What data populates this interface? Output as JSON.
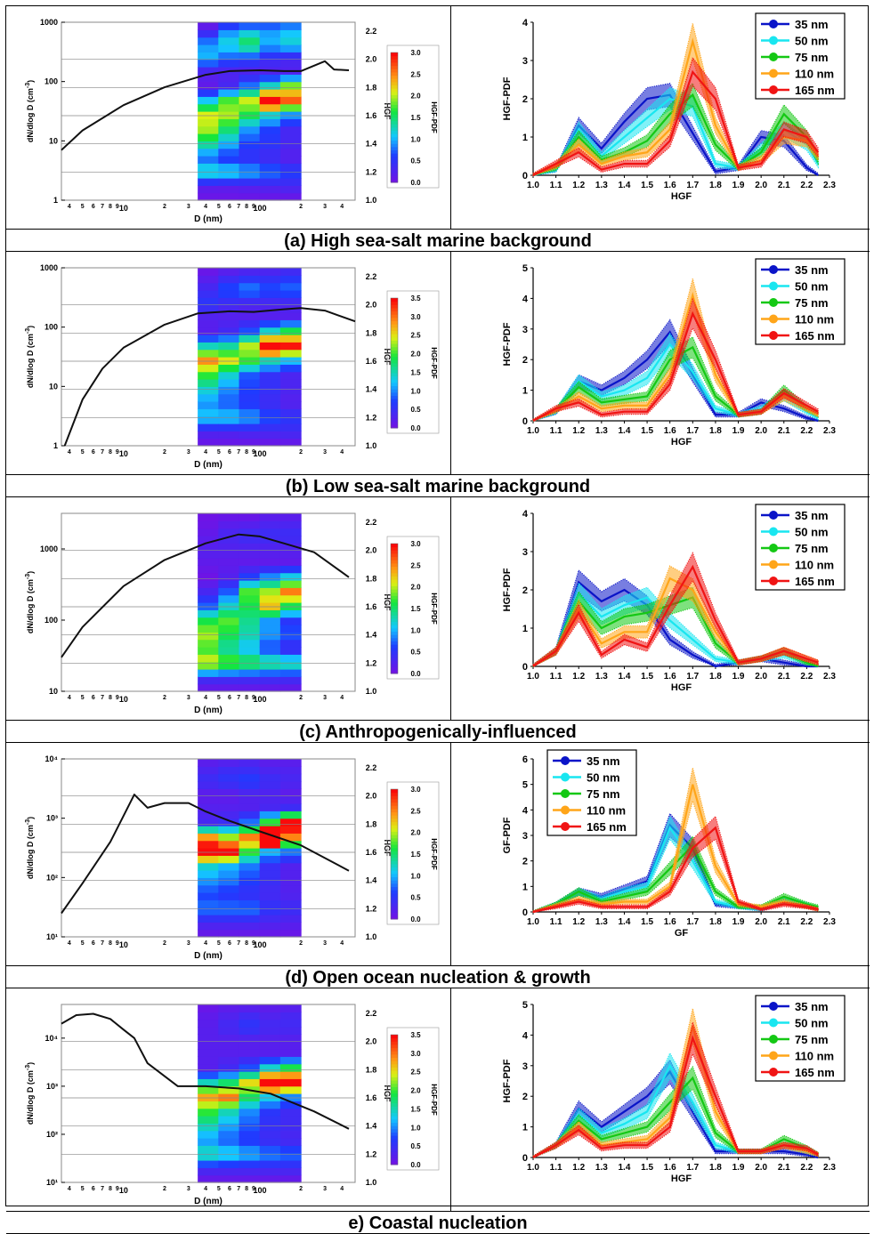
{
  "left_axes": {
    "x_label": "D (nm)",
    "y_label": "dN/dlog D (cm",
    "y_label_sup": "-3",
    "y_label_end": ")",
    "hgf_label": "HGF",
    "cbar_label": "HGF-PDF",
    "hgf_ticks": [
      "1.0",
      "1.2",
      "1.4",
      "1.6",
      "1.8",
      "2.0",
      "2.2"
    ]
  },
  "sizes_nm": [
    "35 nm",
    "50 nm",
    "75 nm",
    "110 nm",
    "165 nm"
  ],
  "series_colors": [
    "#0a14c8",
    "#19e6f0",
    "#14c814",
    "#ffa519",
    "#f01414"
  ],
  "x_ticks": [
    "1.0",
    "1.1",
    "1.2",
    "1.3",
    "1.4",
    "1.5",
    "1.6",
    "1.7",
    "1.8",
    "1.9",
    "2.0",
    "2.1",
    "2.2",
    "2.3"
  ],
  "panels": [
    {
      "caption": "(a) High sea-salt marine background",
      "left": {
        "y_ticks": [
          "1",
          "10",
          "100",
          "1000"
        ],
        "log_min": 0,
        "log_max": 3,
        "size_distribution": {
          "d_nm": [
            3.5,
            5,
            10,
            20,
            40,
            60,
            100,
            150,
            200,
            300,
            350,
            450
          ],
          "dndlogd": [
            7,
            15,
            40,
            80,
            130,
            150,
            155,
            150,
            150,
            220,
            160,
            155
          ]
        },
        "cbar_ticks": [
          "0.0",
          "0.5",
          "1.0",
          "1.5",
          "2.0",
          "2.5",
          "3.0"
        ],
        "cbar_max": 3.0
      },
      "right": {
        "ylabel": "HGF-PDF",
        "xlabel": "HGF",
        "ylim": [
          0,
          4
        ],
        "y_ticks": [
          "0",
          "1",
          "2",
          "3",
          "4"
        ],
        "x": [
          1.0,
          1.1,
          1.2,
          1.3,
          1.4,
          1.5,
          1.6,
          1.7,
          1.8,
          1.9,
          2.0,
          2.1,
          2.2,
          2.25
        ],
        "series": [
          {
            "name": "35 nm",
            "values": [
              0.0,
              0.15,
              1.3,
              0.7,
              1.4,
              2.0,
              2.1,
              1.1,
              0.1,
              0.2,
              1.0,
              0.9,
              0.2,
              0.0
            ]
          },
          {
            "name": "50 nm",
            "values": [
              0.0,
              0.15,
              1.2,
              0.5,
              1.0,
              1.5,
              2.0,
              1.8,
              0.3,
              0.2,
              0.7,
              1.2,
              0.8,
              0.3
            ]
          },
          {
            "name": "75 nm",
            "values": [
              0.0,
              0.2,
              1.0,
              0.4,
              0.6,
              0.9,
              1.6,
              2.1,
              0.8,
              0.2,
              0.6,
              1.6,
              1.0,
              0.4
            ]
          },
          {
            "name": "110 nm",
            "values": [
              0.0,
              0.25,
              0.8,
              0.3,
              0.5,
              0.6,
              1.2,
              3.5,
              1.3,
              0.2,
              0.4,
              1.0,
              0.9,
              0.5
            ]
          },
          {
            "name": "165 nm",
            "values": [
              0.0,
              0.3,
              0.6,
              0.15,
              0.3,
              0.3,
              0.9,
              2.7,
              2.0,
              0.2,
              0.3,
              1.2,
              1.0,
              0.6
            ]
          }
        ]
      }
    },
    {
      "caption": "(b) Low sea-salt marine background",
      "left": {
        "y_ticks": [
          "1",
          "10",
          "100",
          "1000"
        ],
        "log_min": 0,
        "log_max": 3,
        "size_distribution": {
          "d_nm": [
            3.7,
            5,
            7,
            10,
            20,
            35,
            60,
            90,
            150,
            200,
            300,
            500
          ],
          "dndlogd": [
            1,
            6,
            20,
            45,
            110,
            170,
            185,
            180,
            200,
            210,
            190,
            125
          ]
        },
        "cbar_ticks": [
          "0.0",
          "0.5",
          "1.0",
          "1.5",
          "2.0",
          "2.5",
          "3.0",
          "3.5"
        ],
        "cbar_max": 3.5
      },
      "right": {
        "ylabel": "HGF-PDF",
        "xlabel": "HGF",
        "ylim": [
          0,
          5
        ],
        "y_ticks": [
          "0",
          "1",
          "2",
          "3",
          "4",
          "5"
        ],
        "x": [
          1.0,
          1.1,
          1.2,
          1.3,
          1.4,
          1.5,
          1.6,
          1.7,
          1.8,
          1.9,
          2.0,
          2.1,
          2.2,
          2.25
        ],
        "series": [
          {
            "name": "35 nm",
            "values": [
              0.0,
              0.3,
              1.3,
              1.0,
              1.4,
              2.0,
              2.9,
              1.5,
              0.2,
              0.2,
              0.6,
              0.4,
              0.1,
              0.0
            ]
          },
          {
            "name": "50 nm",
            "values": [
              0.0,
              0.3,
              1.3,
              0.8,
              1.0,
              1.4,
              2.5,
              1.6,
              0.4,
              0.2,
              0.4,
              0.8,
              0.3,
              0.1
            ]
          },
          {
            "name": "75 nm",
            "values": [
              0.0,
              0.35,
              1.1,
              0.6,
              0.7,
              0.8,
              2.0,
              2.4,
              0.8,
              0.2,
              0.3,
              1.0,
              0.4,
              0.2
            ]
          },
          {
            "name": "110 nm",
            "values": [
              0.0,
              0.35,
              0.8,
              0.4,
              0.5,
              0.5,
              1.5,
              4.1,
              1.5,
              0.2,
              0.3,
              0.8,
              0.4,
              0.2
            ]
          },
          {
            "name": "165 nm",
            "values": [
              0.0,
              0.4,
              0.6,
              0.2,
              0.3,
              0.3,
              1.2,
              3.5,
              2.0,
              0.2,
              0.3,
              0.9,
              0.5,
              0.3
            ]
          }
        ]
      }
    },
    {
      "caption": "(c) Anthropogenically-influenced",
      "left": {
        "y_ticks": [
          "10",
          "100",
          "1000"
        ],
        "log_min": 1,
        "log_max": 3.5,
        "size_distribution": {
          "d_nm": [
            3.5,
            5,
            10,
            20,
            40,
            70,
            100,
            150,
            250,
            450
          ],
          "dndlogd": [
            30,
            80,
            300,
            700,
            1200,
            1600,
            1500,
            1200,
            900,
            400
          ]
        },
        "cbar_ticks": [
          "0.0",
          "0.5",
          "1.0",
          "1.5",
          "2.0",
          "2.5",
          "3.0"
        ],
        "cbar_max": 3.0
      },
      "right": {
        "ylabel": "HGF-PDF",
        "xlabel": "HGF",
        "ylim": [
          0,
          4
        ],
        "y_ticks": [
          "0",
          "1",
          "2",
          "3",
          "4"
        ],
        "x": [
          1.0,
          1.1,
          1.2,
          1.3,
          1.4,
          1.5,
          1.6,
          1.7,
          1.8,
          1.9,
          2.0,
          2.1,
          2.2,
          2.25
        ],
        "series": [
          {
            "name": "35 nm",
            "values": [
              0.0,
              0.4,
              2.2,
              1.7,
              2.0,
              1.6,
              0.7,
              0.3,
              0.0,
              0.1,
              0.2,
              0.1,
              0.0,
              0.0
            ]
          },
          {
            "name": "50 nm",
            "values": [
              0.0,
              0.4,
              1.9,
              1.3,
              1.6,
              1.8,
              1.2,
              0.7,
              0.2,
              0.1,
              0.2,
              0.3,
              0.1,
              0.0
            ]
          },
          {
            "name": "75 nm",
            "values": [
              0.0,
              0.4,
              1.7,
              1.0,
              1.3,
              1.4,
              1.6,
              1.8,
              0.6,
              0.1,
              0.2,
              0.4,
              0.1,
              0.0
            ]
          },
          {
            "name": "110 nm",
            "values": [
              0.0,
              0.4,
              1.5,
              0.6,
              0.9,
              0.9,
              2.3,
              2.0,
              0.9,
              0.1,
              0.2,
              0.4,
              0.2,
              0.1
            ]
          },
          {
            "name": "165 nm",
            "values": [
              0.0,
              0.4,
              1.4,
              0.3,
              0.7,
              0.5,
              1.6,
              2.6,
              1.2,
              0.1,
              0.2,
              0.4,
              0.2,
              0.1
            ]
          }
        ]
      }
    },
    {
      "caption": "(d) Open ocean nucleation & growth",
      "left": {
        "y_ticks": [
          "10¹",
          "10²",
          "10³",
          "10⁴"
        ],
        "log_min": 1,
        "log_max": 4,
        "size_distribution": {
          "d_nm": [
            3.5,
            5,
            8,
            12,
            15,
            20,
            30,
            40,
            60,
            100,
            200,
            450
          ],
          "dndlogd": [
            25,
            80,
            400,
            2500,
            1500,
            1800,
            1800,
            1300,
            900,
            600,
            350,
            130
          ]
        },
        "cbar_ticks": [
          "0.0",
          "0.5",
          "1.0",
          "1.5",
          "2.0",
          "2.5",
          "3.0"
        ],
        "cbar_max": 3.0
      },
      "right": {
        "ylabel": "GF-PDF",
        "xlabel": "GF",
        "ylim": [
          0,
          6
        ],
        "y_ticks": [
          "0",
          "1",
          "2",
          "3",
          "4",
          "5",
          "6"
        ],
        "x": [
          1.0,
          1.1,
          1.2,
          1.3,
          1.4,
          1.5,
          1.6,
          1.7,
          1.8,
          1.9,
          2.0,
          2.1,
          2.2,
          2.25
        ],
        "series": [
          {
            "name": "35 nm",
            "values": [
              0.0,
              0.3,
              0.8,
              0.6,
              0.9,
              1.2,
              3.4,
              2.5,
              0.3,
              0.2,
              0.1,
              0.4,
              0.2,
              0.1
            ]
          },
          {
            "name": "50 nm",
            "values": [
              0.0,
              0.3,
              0.8,
              0.5,
              0.8,
              1.0,
              3.3,
              2.0,
              0.4,
              0.2,
              0.1,
              0.5,
              0.3,
              0.1
            ]
          },
          {
            "name": "75 nm",
            "values": [
              0.0,
              0.3,
              0.8,
              0.4,
              0.6,
              0.8,
              1.7,
              2.6,
              0.8,
              0.2,
              0.2,
              0.6,
              0.3,
              0.2
            ]
          },
          {
            "name": "110 nm",
            "values": [
              0.0,
              0.25,
              0.5,
              0.3,
              0.4,
              0.4,
              1.0,
              5.0,
              1.8,
              0.3,
              0.2,
              0.4,
              0.2,
              0.1
            ]
          },
          {
            "name": "165 nm",
            "values": [
              0.0,
              0.2,
              0.4,
              0.2,
              0.2,
              0.2,
              0.8,
              2.5,
              3.3,
              0.4,
              0.1,
              0.3,
              0.2,
              0.1
            ]
          }
        ]
      }
    },
    {
      "caption": "e) Coastal nucleation",
      "left": {
        "y_ticks": [
          "10¹",
          "10²",
          "10³",
          "10⁴"
        ],
        "log_min": 1,
        "log_max": 4.7,
        "size_distribution": {
          "d_nm": [
            3.5,
            4.5,
            6,
            8,
            10,
            12,
            15,
            25,
            40,
            70,
            120,
            250,
            450
          ],
          "dndlogd": [
            20000,
            30000,
            32000,
            25000,
            15000,
            10000,
            3000,
            1000,
            1000,
            900,
            700,
            300,
            130
          ]
        },
        "cbar_ticks": [
          "0.0",
          "0.5",
          "1.0",
          "1.5",
          "2.0",
          "2.5",
          "3.0",
          "3.5"
        ],
        "cbar_max": 3.5
      },
      "right": {
        "ylabel": "HGF-PDF",
        "xlabel": "HGF",
        "ylim": [
          0,
          5
        ],
        "y_ticks": [
          "0",
          "1",
          "2",
          "3",
          "4",
          "5"
        ],
        "x": [
          1.0,
          1.1,
          1.2,
          1.3,
          1.4,
          1.5,
          1.6,
          1.7,
          1.8,
          1.9,
          2.0,
          2.1,
          2.2,
          2.25
        ],
        "series": [
          {
            "name": "35 nm",
            "values": [
              0.0,
              0.4,
              1.6,
              1.0,
              1.5,
              2.0,
              2.8,
              1.5,
              0.2,
              0.2,
              0.2,
              0.2,
              0.1,
              0.0
            ]
          },
          {
            "name": "50 nm",
            "values": [
              0.0,
              0.4,
              1.4,
              0.8,
              1.1,
              1.5,
              3.0,
              1.8,
              0.4,
              0.2,
              0.2,
              0.4,
              0.2,
              0.1
            ]
          },
          {
            "name": "75 nm",
            "values": [
              0.0,
              0.4,
              1.2,
              0.6,
              0.8,
              1.0,
              1.8,
              2.6,
              0.8,
              0.2,
              0.2,
              0.6,
              0.3,
              0.1
            ]
          },
          {
            "name": "110 nm",
            "values": [
              0.0,
              0.4,
              1.0,
              0.4,
              0.5,
              0.6,
              1.3,
              4.3,
              1.5,
              0.2,
              0.2,
              0.4,
              0.2,
              0.1
            ]
          },
          {
            "name": "165 nm",
            "values": [
              0.0,
              0.4,
              0.9,
              0.3,
              0.4,
              0.4,
              1.0,
              3.9,
              2.0,
              0.2,
              0.2,
              0.4,
              0.3,
              0.1
            ]
          }
        ]
      }
    }
  ],
  "chart_data": [
    {
      "type": "heatmap",
      "caption": "(a) High sea-salt marine background",
      "xlabel": "D (nm)",
      "ylabel": "dN/dlog D (cm-3)",
      "y2label": "HGF",
      "colorbar": "HGF-PDF"
    },
    {
      "type": "line",
      "caption": "(a) High sea-salt marine background",
      "xlabel": "HGF",
      "ylabel": "HGF-PDF",
      "ylim": [
        0,
        4
      ],
      "legend": "top-right"
    },
    {
      "type": "heatmap",
      "caption": "(b) Low sea-salt marine background",
      "xlabel": "D (nm)",
      "ylabel": "dN/dlog D (cm-3)",
      "y2label": "HGF",
      "colorbar": "HGF-PDF"
    },
    {
      "type": "line",
      "caption": "(b) Low sea-salt marine background",
      "xlabel": "HGF",
      "ylabel": "HGF-PDF",
      "ylim": [
        0,
        5
      ],
      "legend": "top-right"
    },
    {
      "type": "heatmap",
      "caption": "(c) Anthropogenically-influenced",
      "xlabel": "D (nm)",
      "ylabel": "dN/dlog D (cm-3)",
      "y2label": "HGF",
      "colorbar": "HGF-PDF"
    },
    {
      "type": "line",
      "caption": "(c) Anthropogenically-influenced",
      "xlabel": "HGF",
      "ylabel": "HGF-PDF",
      "ylim": [
        0,
        4
      ],
      "legend": "top-right"
    },
    {
      "type": "heatmap",
      "caption": "(d) Open ocean nucleation & growth",
      "xlabel": "D (nm)",
      "ylabel": "dN/dlog D (cm-3)",
      "y2label": "HGF",
      "colorbar": "HGF-PDF"
    },
    {
      "type": "line",
      "caption": "(d) Open ocean nucleation & growth",
      "xlabel": "GF",
      "ylabel": "GF-PDF",
      "ylim": [
        0,
        6
      ],
      "legend": "top-left"
    },
    {
      "type": "heatmap",
      "caption": "e) Coastal nucleation",
      "xlabel": "D (nm)",
      "ylabel": "dN/dlog D (cm-3)",
      "y2label": "HGF",
      "colorbar": "HGF-PDF"
    },
    {
      "type": "line",
      "caption": "e) Coastal nucleation",
      "xlabel": "HGF",
      "ylabel": "HGF-PDF",
      "ylim": [
        0,
        5
      ],
      "legend": "top-right"
    }
  ]
}
